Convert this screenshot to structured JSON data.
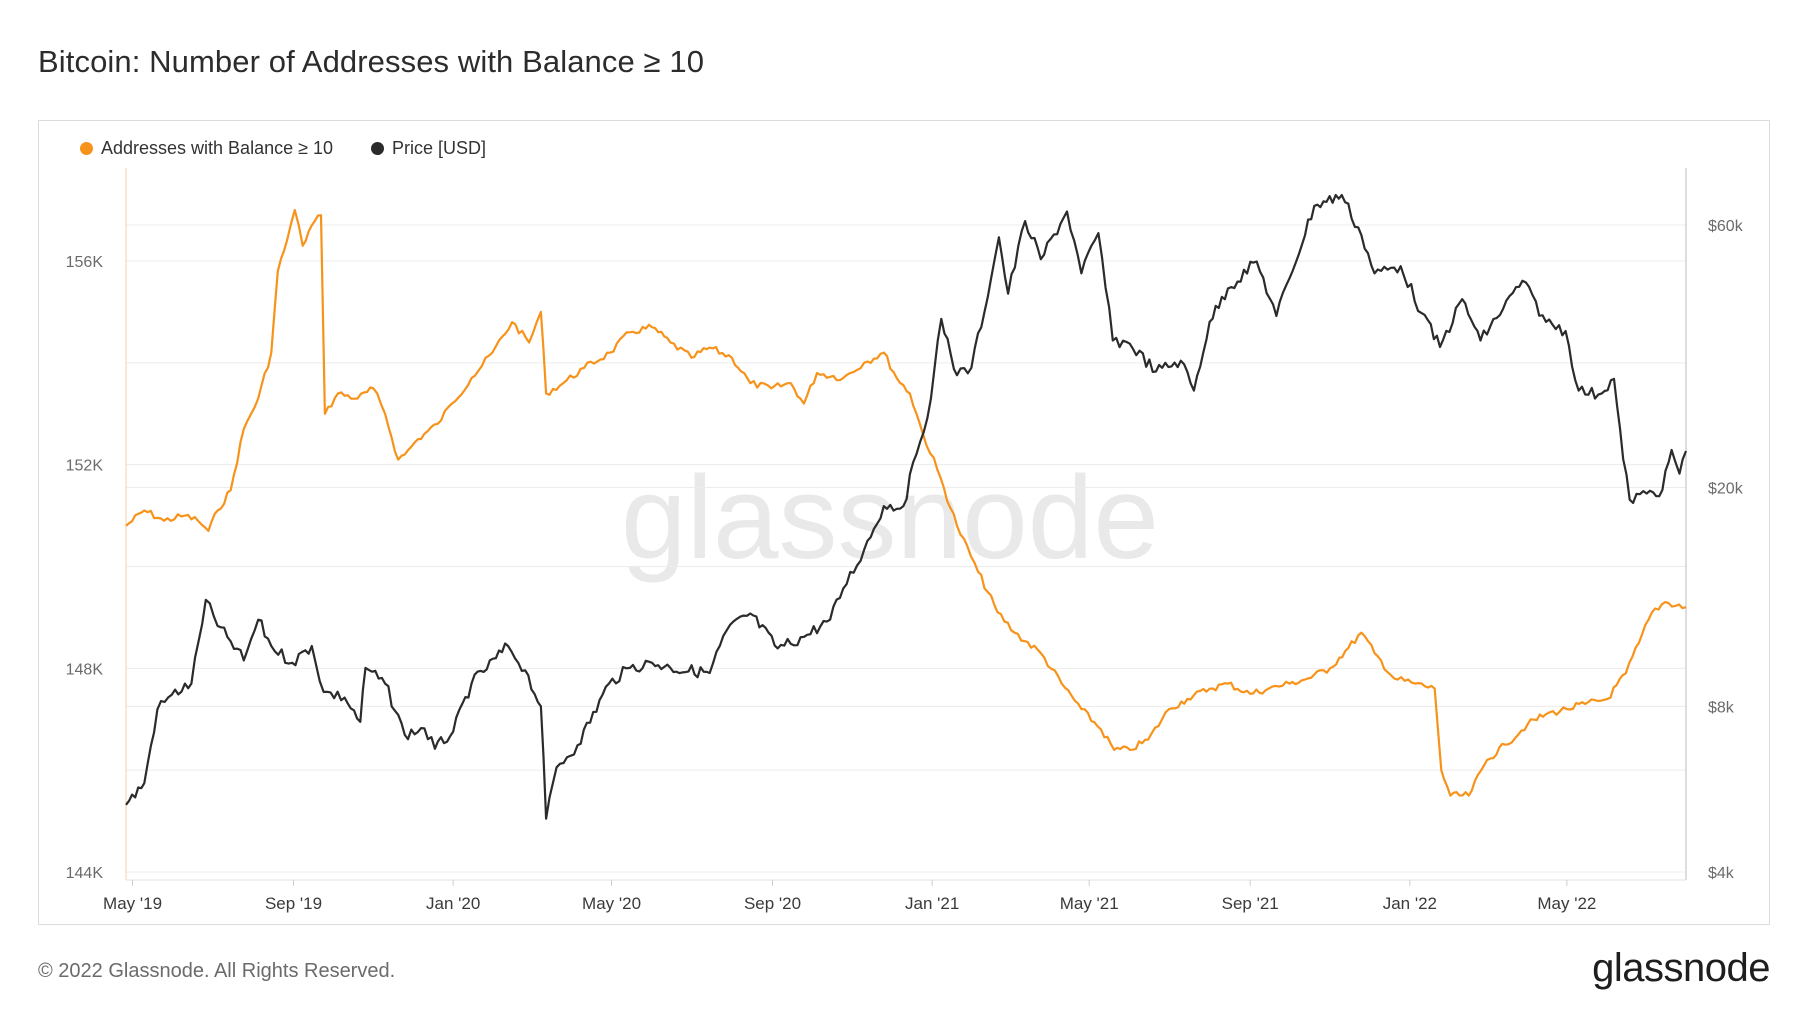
{
  "title": "Bitcoin: Number of Addresses with Balance ≥ 10",
  "watermark": "glassnode",
  "footer": {
    "copyright": "© 2022 Glassnode. All Rights Reserved.",
    "logo": "glassnode"
  },
  "colors": {
    "addresses": "#f7931a",
    "price": "#2b2b2b",
    "grid": "#ececec",
    "axis_text": "#6b6b6b"
  },
  "chart_data": {
    "type": "line",
    "title": "Bitcoin: Number of Addresses with Balance ≥ 10",
    "legend": {
      "placement": "top-left"
    },
    "x_range": [
      "2019-04-26",
      "2022-07-31"
    ],
    "x_ticks": [
      {
        "date": "2019-05-01",
        "label": "May '19"
      },
      {
        "date": "2019-09-01",
        "label": "Sep '19"
      },
      {
        "date": "2020-01-01",
        "label": "Jan '20"
      },
      {
        "date": "2020-05-01",
        "label": "May '20"
      },
      {
        "date": "2020-09-01",
        "label": "Sep '20"
      },
      {
        "date": "2021-01-01",
        "label": "Jan '21"
      },
      {
        "date": "2021-05-01",
        "label": "May '21"
      },
      {
        "date": "2021-09-01",
        "label": "Sep '21"
      },
      {
        "date": "2022-01-01",
        "label": "Jan '22"
      },
      {
        "date": "2022-05-01",
        "label": "May '22"
      }
    ],
    "y_left": {
      "label": "Addresses with Balance ≥ 10",
      "min": 144000,
      "max": 157200,
      "ticks": [
        {
          "value": 144000,
          "label": "144K"
        },
        {
          "value": 148000,
          "label": "148K"
        },
        {
          "value": 152000,
          "label": "152K"
        },
        {
          "value": 156000,
          "label": "156K"
        }
      ]
    },
    "y_right": {
      "label": "Price [USD]",
      "scale": "log",
      "min": 4000,
      "max": 80000,
      "ticks": [
        {
          "value": 4000,
          "label": "$4k"
        },
        {
          "value": 8000,
          "label": "$8k"
        },
        {
          "value": 20000,
          "label": "$20k"
        },
        {
          "value": 60000,
          "label": "$60k"
        }
      ]
    },
    "series": [
      {
        "name": "Addresses with Balance ≥ 10",
        "axis": "left",
        "color": "#f7931a",
        "points": [
          [
            "2019-04-26",
            150800
          ],
          [
            "2019-05-10",
            151100
          ],
          [
            "2019-05-25",
            150900
          ],
          [
            "2019-06-10",
            151000
          ],
          [
            "2019-06-20",
            150900
          ],
          [
            "2019-06-28",
            150700
          ],
          [
            "2019-07-05",
            151100
          ],
          [
            "2019-07-15",
            151500
          ],
          [
            "2019-07-25",
            152700
          ],
          [
            "2019-08-05",
            153300
          ],
          [
            "2019-08-15",
            154200
          ],
          [
            "2019-08-20",
            155800
          ],
          [
            "2019-08-27",
            156400
          ],
          [
            "2019-09-02",
            157000
          ],
          [
            "2019-09-08",
            156300
          ],
          [
            "2019-09-15",
            156700
          ],
          [
            "2019-09-22",
            156900
          ],
          [
            "2019-09-25",
            153000
          ],
          [
            "2019-10-05",
            153400
          ],
          [
            "2019-10-20",
            153300
          ],
          [
            "2019-11-01",
            153500
          ],
          [
            "2019-11-10",
            153000
          ],
          [
            "2019-11-20",
            152100
          ],
          [
            "2019-11-25",
            152200
          ],
          [
            "2019-12-05",
            152500
          ],
          [
            "2019-12-20",
            152800
          ],
          [
            "2019-12-31",
            153200
          ],
          [
            "2020-01-15",
            153700
          ],
          [
            "2020-01-31",
            154200
          ],
          [
            "2020-02-15",
            154800
          ],
          [
            "2020-02-28",
            154400
          ],
          [
            "2020-03-08",
            155000
          ],
          [
            "2020-03-12",
            153400
          ],
          [
            "2020-03-25",
            153600
          ],
          [
            "2020-04-10",
            153900
          ],
          [
            "2020-04-30",
            154200
          ],
          [
            "2020-05-15",
            154600
          ],
          [
            "2020-06-01",
            154700
          ],
          [
            "2020-06-15",
            154400
          ],
          [
            "2020-07-01",
            154100
          ],
          [
            "2020-07-15",
            154300
          ],
          [
            "2020-08-01",
            154100
          ],
          [
            "2020-08-15",
            153600
          ],
          [
            "2020-08-31",
            153500
          ],
          [
            "2020-09-15",
            153600
          ],
          [
            "2020-09-25",
            153200
          ],
          [
            "2020-10-05",
            153800
          ],
          [
            "2020-10-25",
            153700
          ],
          [
            "2020-11-10",
            154000
          ],
          [
            "2020-11-25",
            154200
          ],
          [
            "2020-12-05",
            153700
          ],
          [
            "2020-12-15",
            153400
          ],
          [
            "2020-12-25",
            152600
          ],
          [
            "2021-01-05",
            151900
          ],
          [
            "2021-01-20",
            150800
          ],
          [
            "2021-02-05",
            149900
          ],
          [
            "2021-02-20",
            149100
          ],
          [
            "2021-03-05",
            148700
          ],
          [
            "2021-03-25",
            148300
          ],
          [
            "2021-04-10",
            147700
          ],
          [
            "2021-04-25",
            147200
          ],
          [
            "2021-05-10",
            146800
          ],
          [
            "2021-05-20",
            146400
          ],
          [
            "2021-06-01",
            146400
          ],
          [
            "2021-06-15",
            146600
          ],
          [
            "2021-07-01",
            147200
          ],
          [
            "2021-07-15",
            147400
          ],
          [
            "2021-08-01",
            147600
          ],
          [
            "2021-08-15",
            147700
          ],
          [
            "2021-09-01",
            147500
          ],
          [
            "2021-09-15",
            147600
          ],
          [
            "2021-10-01",
            147700
          ],
          [
            "2021-10-15",
            147800
          ],
          [
            "2021-11-01",
            148000
          ],
          [
            "2021-11-15",
            148400
          ],
          [
            "2021-11-25",
            148700
          ],
          [
            "2021-12-05",
            148300
          ],
          [
            "2021-12-20",
            147800
          ],
          [
            "2022-01-05",
            147700
          ],
          [
            "2022-01-20",
            147600
          ],
          [
            "2022-01-25",
            146000
          ],
          [
            "2022-02-01",
            145500
          ],
          [
            "2022-02-15",
            145500
          ],
          [
            "2022-03-01",
            146200
          ],
          [
            "2022-03-15",
            146500
          ],
          [
            "2022-04-01",
            146900
          ],
          [
            "2022-04-15",
            147100
          ],
          [
            "2022-05-01",
            147200
          ],
          [
            "2022-05-15",
            147300
          ],
          [
            "2022-06-01",
            147400
          ],
          [
            "2022-06-15",
            147900
          ],
          [
            "2022-06-25",
            148500
          ],
          [
            "2022-07-05",
            149100
          ],
          [
            "2022-07-15",
            149300
          ],
          [
            "2022-07-31",
            149200
          ]
        ]
      },
      {
        "name": "Price [USD]",
        "axis": "right",
        "color": "#2b2b2b",
        "points": [
          [
            "2019-04-26",
            5300
          ],
          [
            "2019-05-10",
            5800
          ],
          [
            "2019-05-20",
            7900
          ],
          [
            "2019-05-31",
            8400
          ],
          [
            "2019-06-15",
            8800
          ],
          [
            "2019-06-26",
            12500
          ],
          [
            "2019-07-05",
            11200
          ],
          [
            "2019-07-15",
            10500
          ],
          [
            "2019-07-25",
            9700
          ],
          [
            "2019-08-05",
            11500
          ],
          [
            "2019-08-15",
            10300
          ],
          [
            "2019-08-31",
            9600
          ],
          [
            "2019-09-15",
            10300
          ],
          [
            "2019-09-24",
            8500
          ],
          [
            "2019-10-10",
            8300
          ],
          [
            "2019-10-22",
            7500
          ],
          [
            "2019-10-26",
            9400
          ],
          [
            "2019-11-10",
            8800
          ],
          [
            "2019-11-25",
            7100
          ],
          [
            "2019-12-10",
            7300
          ],
          [
            "2019-12-18",
            6700
          ],
          [
            "2020-01-01",
            7200
          ],
          [
            "2020-01-15",
            8800
          ],
          [
            "2020-02-12",
            10300
          ],
          [
            "2020-02-25",
            9300
          ],
          [
            "2020-03-08",
            8000
          ],
          [
            "2020-03-12",
            5000
          ],
          [
            "2020-03-20",
            6200
          ],
          [
            "2020-04-05",
            6800
          ],
          [
            "2020-04-29",
            8800
          ],
          [
            "2020-05-15",
            9400
          ],
          [
            "2020-06-01",
            9600
          ],
          [
            "2020-06-15",
            9400
          ],
          [
            "2020-07-15",
            9200
          ],
          [
            "2020-07-28",
            11000
          ],
          [
            "2020-08-15",
            11800
          ],
          [
            "2020-09-05",
            10200
          ],
          [
            "2020-09-25",
            10700
          ],
          [
            "2020-10-15",
            11500
          ],
          [
            "2020-10-25",
            13100
          ],
          [
            "2020-11-10",
            15400
          ],
          [
            "2020-11-25",
            18500
          ],
          [
            "2020-12-10",
            18500
          ],
          [
            "2020-12-20",
            23000
          ],
          [
            "2020-12-31",
            29000
          ],
          [
            "2021-01-08",
            40500
          ],
          [
            "2021-01-20",
            32000
          ],
          [
            "2021-01-31",
            33000
          ],
          [
            "2021-02-15",
            48000
          ],
          [
            "2021-02-21",
            57000
          ],
          [
            "2021-02-28",
            45000
          ],
          [
            "2021-03-13",
            61000
          ],
          [
            "2021-03-25",
            52000
          ],
          [
            "2021-04-14",
            63500
          ],
          [
            "2021-04-25",
            49000
          ],
          [
            "2021-05-08",
            58000
          ],
          [
            "2021-05-19",
            37000
          ],
          [
            "2021-06-01",
            36500
          ],
          [
            "2021-06-21",
            32500
          ],
          [
            "2021-07-10",
            34000
          ],
          [
            "2021-07-20",
            30000
          ],
          [
            "2021-08-01",
            40000
          ],
          [
            "2021-08-15",
            46000
          ],
          [
            "2021-09-06",
            51500
          ],
          [
            "2021-09-21",
            41000
          ],
          [
            "2021-10-01",
            48000
          ],
          [
            "2021-10-20",
            65000
          ],
          [
            "2021-11-10",
            68000
          ],
          [
            "2021-11-25",
            57500
          ],
          [
            "2021-12-05",
            49000
          ],
          [
            "2021-12-25",
            50500
          ],
          [
            "2022-01-10",
            41500
          ],
          [
            "2022-01-24",
            36000
          ],
          [
            "2022-02-10",
            44000
          ],
          [
            "2022-02-24",
            37000
          ],
          [
            "2022-03-28",
            47500
          ],
          [
            "2022-04-15",
            40000
          ],
          [
            "2022-04-30",
            38500
          ],
          [
            "2022-05-10",
            30000
          ],
          [
            "2022-05-25",
            29500
          ],
          [
            "2022-06-06",
            31500
          ],
          [
            "2022-06-13",
            22500
          ],
          [
            "2022-06-18",
            19000
          ],
          [
            "2022-07-01",
            19500
          ],
          [
            "2022-07-13",
            19800
          ],
          [
            "2022-07-20",
            23400
          ],
          [
            "2022-07-26",
            21200
          ],
          [
            "2022-07-31",
            23300
          ]
        ]
      }
    ]
  }
}
